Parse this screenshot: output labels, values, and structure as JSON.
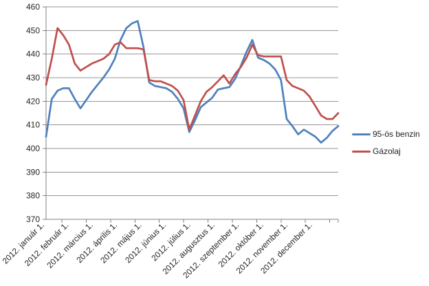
{
  "chart_data": {
    "type": "line",
    "title": "",
    "xlabel": "",
    "ylabel": "",
    "x_unit": "weekly observations, year 2012",
    "x_tick_labels": [
      "2012. január 1.",
      "2012. február 1.",
      "2012. március 1.",
      "2012. április 1.",
      "2012. május 1.",
      "2012. június 1.",
      "2012. július 1.",
      "2012. augusztus 1.",
      "2012. szeptember 1.",
      "2012. október 1.",
      "2012. november 1.",
      "2012. december 1."
    ],
    "y_ticks": [
      370,
      380,
      390,
      400,
      410,
      420,
      430,
      440,
      450,
      460
    ],
    "ylim": [
      370,
      460
    ],
    "grid": true,
    "legend_position": "right",
    "series": [
      {
        "name": "95-ös benzin",
        "color": "#4F81BD",
        "values": [
          405,
          421,
          424.5,
          425.5,
          425.5,
          421,
          417,
          420.5,
          424,
          427,
          430,
          433.5,
          438,
          446,
          451,
          453,
          454,
          443,
          428,
          426.5,
          426,
          425.5,
          424,
          421,
          417,
          407,
          412,
          417.5,
          419.5,
          421.5,
          425,
          425.5,
          426,
          429.5,
          435,
          441,
          446,
          438.5,
          437.5,
          436,
          433.5,
          429,
          412.5,
          409.5,
          406,
          408,
          406.5,
          405,
          402.5,
          404.5,
          407.5,
          409.5
        ]
      },
      {
        "name": "Gázolaj",
        "color": "#C0504D",
        "values": [
          427,
          438,
          451,
          448,
          444,
          436,
          433,
          434.5,
          436,
          437,
          438,
          440,
          444,
          445,
          442.5,
          442.5,
          442.5,
          442,
          429,
          428.5,
          428.5,
          427.5,
          426.5,
          424.5,
          420.5,
          408,
          414,
          420,
          424,
          426,
          428.5,
          431,
          427.5,
          431.5,
          434.5,
          438.5,
          444,
          439.5,
          439,
          439,
          439,
          439,
          429,
          426.5,
          425.5,
          424.5,
          422,
          418,
          414,
          412.5,
          412.5,
          415
        ]
      }
    ]
  },
  "colors": {
    "background": "#FFFFFF",
    "gridline": "#949494",
    "axis": "#7F7F7F",
    "tick": "#7F7F7F",
    "label_text": "#262626"
  }
}
